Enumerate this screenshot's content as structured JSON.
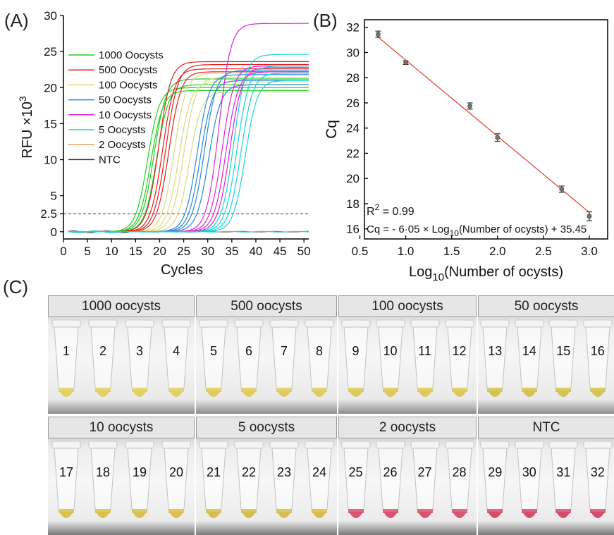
{
  "panelA": {
    "label": "(A)",
    "chart_data": {
      "type": "line",
      "xlabel": "Cycles",
      "ylabel_main": "RFU ×10",
      "ylabel_sup": "3",
      "xlim": [
        0,
        51
      ],
      "ylim": [
        -1,
        30
      ],
      "xticks": [
        0,
        5,
        10,
        15,
        20,
        25,
        30,
        35,
        40,
        45,
        50
      ],
      "yticks": [
        0,
        2.5,
        5,
        10,
        15,
        20,
        25,
        30
      ],
      "ytick_labels": [
        "0",
        "2.5",
        "5",
        "10",
        "15",
        "20",
        "25",
        "30"
      ],
      "threshold": 2.5,
      "legend_position": "top-left",
      "series": [
        {
          "name": "1000 Oocysts",
          "color": "#22d022",
          "curves": [
            {
              "mid": 17.5,
              "plat": 20.0
            },
            {
              "mid": 18.2,
              "plat": 19.6
            },
            {
              "mid": 18.8,
              "plat": 21.2
            },
            {
              "mid": 19.4,
              "plat": 20.4
            }
          ]
        },
        {
          "name": "500 Oocysts",
          "color": "#e02020",
          "curves": [
            {
              "mid": 19.8,
              "plat": 23.6
            },
            {
              "mid": 20.6,
              "plat": 22.6
            },
            {
              "mid": 21.3,
              "plat": 23.2
            },
            {
              "mid": 21.9,
              "plat": 22.2
            }
          ]
        },
        {
          "name": "100 Oocysts",
          "color": "#d8dc7c",
          "curves": [
            {
              "mid": 23.0,
              "plat": 22.0
            },
            {
              "mid": 24.0,
              "plat": 20.8
            },
            {
              "mid": 25.0,
              "plat": 21.4
            },
            {
              "mid": 26.2,
              "plat": 19.4
            }
          ]
        },
        {
          "name": "50 Oocysts",
          "color": "#2a86dc",
          "curves": [
            {
              "mid": 27.8,
              "plat": 21.8
            },
            {
              "mid": 28.5,
              "plat": 21.0
            },
            {
              "mid": 29.3,
              "plat": 22.4
            },
            {
              "mid": 30.2,
              "plat": 20.4
            }
          ]
        },
        {
          "name": "10 Oocysts",
          "color": "#dd22dd",
          "curves": [
            {
              "mid": 32.3,
              "plat": 28.9
            },
            {
              "mid": 33.0,
              "plat": 23.0
            },
            {
              "mid": 33.8,
              "plat": 22.2
            },
            {
              "mid": 34.6,
              "plat": 22.8
            }
          ]
        },
        {
          "name": "5 Oocysts",
          "color": "#19d4d4",
          "curves": [
            {
              "mid": 35.4,
              "plat": 24.6
            },
            {
              "mid": 36.1,
              "plat": 23.0
            },
            {
              "mid": 36.9,
              "plat": 22.0
            },
            {
              "mid": 37.8,
              "plat": 21.0
            }
          ]
        },
        {
          "name": "2 Oocysts",
          "color": "#f0a060",
          "curves": []
        },
        {
          "name": "NTC",
          "color": "#333333",
          "curves": []
        }
      ]
    }
  },
  "panelB": {
    "label": "(B)",
    "chart_data": {
      "type": "scatter",
      "xlabel_pre": "Log",
      "xlabel_sub": "10",
      "xlabel_post": "(Number of ocysts)",
      "ylabel": "Cq",
      "xlim": [
        0.55,
        3.2
      ],
      "ylim": [
        15.2,
        32.6
      ],
      "xticks": [
        0.5,
        1.0,
        1.5,
        2.0,
        2.5,
        3.0
      ],
      "xtick_labels": [
        "0.5",
        "1.0",
        "1.5",
        "2.0",
        "2.5",
        "3.0"
      ],
      "yticks": [
        16,
        18,
        20,
        22,
        24,
        26,
        28,
        30,
        32
      ],
      "x": [
        0.699,
        1.0,
        1.699,
        2.0,
        2.699,
        3.0
      ],
      "y": [
        31.45,
        29.2,
        25.75,
        23.25,
        19.15,
        17.0
      ],
      "err": [
        0.25,
        0.15,
        0.25,
        0.3,
        0.25,
        0.35
      ],
      "fit": {
        "slope": -6.05,
        "intercept": 35.45,
        "color": "#e8352a"
      },
      "r2_pre": "R",
      "r2_sup": "2",
      "r2_post": " = 0.99",
      "eq_pre": "Cq = - 6·05 × Log",
      "eq_sub": "10",
      "eq_post": "(Number of ocysts) + 35.45"
    }
  },
  "panelC": {
    "label": "(C)",
    "rows": [
      {
        "groups": [
          {
            "header": "1000 oocysts",
            "tubes": [
              "1",
              "2",
              "3",
              "4"
            ],
            "liquid": "#e4cf62"
          },
          {
            "header": "500 oocysts",
            "tubes": [
              "5",
              "6",
              "7",
              "8"
            ],
            "liquid": "#e2cb5e"
          },
          {
            "header": "100 oocysts",
            "tubes": [
              "9",
              "10",
              "11",
              "12"
            ],
            "liquid": "#dfc85a"
          },
          {
            "header": "50 oocysts",
            "tubes": [
              "13",
              "14",
              "15",
              "16"
            ],
            "liquid": "#d6c250"
          }
        ]
      },
      {
        "groups": [
          {
            "header": "10 oocysts",
            "tubes": [
              "17",
              "18",
              "19",
              "20"
            ],
            "liquid": "#d9c14f"
          },
          {
            "header": "5 oocysts",
            "tubes": [
              "21",
              "22",
              "23",
              "24"
            ],
            "liquid": "#d6be4c"
          },
          {
            "header": "2 oocysts",
            "tubes": [
              "25",
              "26",
              "27",
              "28"
            ],
            "liquid": "#d8546f"
          },
          {
            "header": "NTC",
            "tubes": [
              "29",
              "30",
              "31",
              "32"
            ],
            "liquid": "#d64d6c"
          }
        ]
      }
    ]
  }
}
